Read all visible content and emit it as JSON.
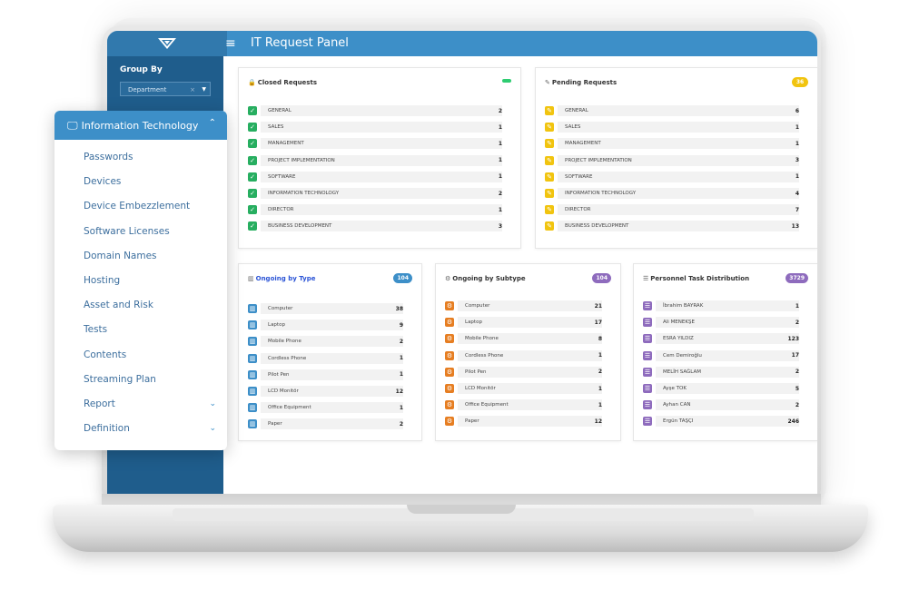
{
  "app": {
    "title": "IT Request Panel",
    "hamburger": "≡",
    "logo": "▽"
  },
  "sidebar": {
    "group_by_label": "Group By",
    "select_value": "Department",
    "select_clear": "×",
    "select_caret": "▼"
  },
  "menu": {
    "header": "Information Technology",
    "header_icon": "monitor-icon",
    "items": [
      {
        "label": "Passwords"
      },
      {
        "label": "Devices"
      },
      {
        "label": "Device Embezzlement"
      },
      {
        "label": "Software Licenses"
      },
      {
        "label": "Domain Names"
      },
      {
        "label": "Hosting"
      },
      {
        "label": "Asset and Risk"
      },
      {
        "label": "Tests"
      },
      {
        "label": "Contents"
      },
      {
        "label": "Streaming Plan"
      },
      {
        "label": "Report",
        "expandable": true
      },
      {
        "label": "Definition",
        "expandable": true
      }
    ]
  },
  "closed": {
    "title": "Closed Requests",
    "badge": "",
    "badge_color": "#2ecc71",
    "icon_color": "#27ae60",
    "rows": [
      {
        "label": "GENERAL",
        "value": "2"
      },
      {
        "label": "SALES",
        "value": "1"
      },
      {
        "label": "MANAGEMENT",
        "value": "1"
      },
      {
        "label": "PROJECT IMPLEMENTATION",
        "value": "1"
      },
      {
        "label": "SOFTWARE",
        "value": "1"
      },
      {
        "label": "INFORMATION TECHNOLOGY",
        "value": "2"
      },
      {
        "label": "DIRECTOR",
        "value": "1"
      },
      {
        "label": "BUSINESS DEVELOPMENT",
        "value": "3"
      }
    ]
  },
  "pending": {
    "title": "Pending Requests",
    "badge": "36",
    "badge_color": "#f1c40f",
    "icon_color": "#f1c40f",
    "rows": [
      {
        "label": "GENERAL",
        "value": "6"
      },
      {
        "label": "SALES",
        "value": "1"
      },
      {
        "label": "MANAGEMENT",
        "value": "1"
      },
      {
        "label": "PROJECT IMPLEMENTATION",
        "value": "3"
      },
      {
        "label": "SOFTWARE",
        "value": "1"
      },
      {
        "label": "INFORMATION TECHNOLOGY",
        "value": "4"
      },
      {
        "label": "DIRECTOR",
        "value": "7"
      },
      {
        "label": "BUSINESS DEVELOPMENT",
        "value": "13"
      }
    ]
  },
  "by_type": {
    "title": "Ongoing by Type",
    "badge": "104",
    "badge_color": "#3d8fc8",
    "icon_color": "#3d8fc8",
    "rows": [
      {
        "label": "Computer",
        "value": "38"
      },
      {
        "label": "Laptop",
        "value": "9"
      },
      {
        "label": "Mobile Phone",
        "value": "2"
      },
      {
        "label": "Cordless Phone",
        "value": "1"
      },
      {
        "label": "Pilot Pen",
        "value": "1"
      },
      {
        "label": "LCD Monitör",
        "value": "12"
      },
      {
        "label": "Office Equipment",
        "value": "1"
      },
      {
        "label": "Paper",
        "value": "2"
      }
    ]
  },
  "by_subtype": {
    "title": "Ongoing by Subtype",
    "badge": "104",
    "badge_color": "#8e6bbd",
    "icon_color": "#e67e22",
    "rows": [
      {
        "label": "Computer",
        "value": "21"
      },
      {
        "label": "Laptop",
        "value": "17"
      },
      {
        "label": "Mobile Phone",
        "value": "8"
      },
      {
        "label": "Cordless Phone",
        "value": "1"
      },
      {
        "label": "Pilot Pen",
        "value": "2"
      },
      {
        "label": "LCD Monitör",
        "value": "1"
      },
      {
        "label": "Office Equipment",
        "value": "1"
      },
      {
        "label": "Paper",
        "value": "12"
      }
    ]
  },
  "personnel": {
    "title": "Personnel Task Distribution",
    "badge": "3729",
    "badge_color": "#8e6bbd",
    "icon_color": "#8e6bbd",
    "rows": [
      {
        "label": "İbrahim BAYRAK",
        "value": "1"
      },
      {
        "label": "Ali MENEKŞE",
        "value": "2"
      },
      {
        "label": "ESRA YILDIZ",
        "value": "123"
      },
      {
        "label": "Cem Demiroğlu",
        "value": "17"
      },
      {
        "label": "MELİH SAĞLAM",
        "value": "2"
      },
      {
        "label": "Ayşe TOK",
        "value": "5"
      },
      {
        "label": "Ayhan CAN",
        "value": "2"
      },
      {
        "label": "Ergün TAŞÇI",
        "value": "246"
      }
    ]
  }
}
